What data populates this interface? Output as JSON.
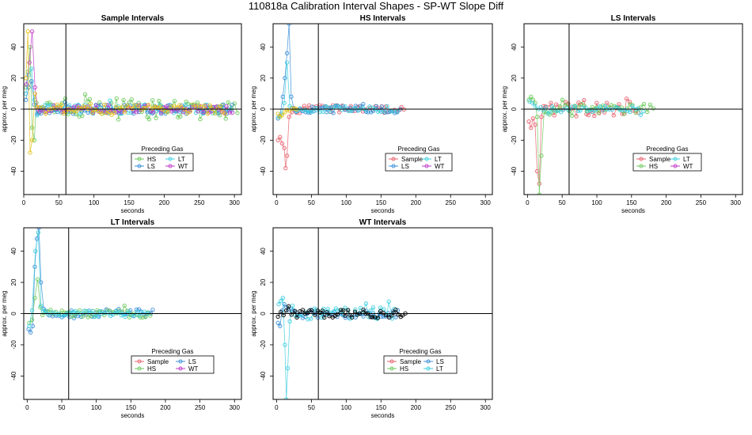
{
  "title": "110818a   Calibration Interval Shapes - SP-WT Slope Diff",
  "colors": {
    "Sample": "#e8616d",
    "HS": "#6cc95c",
    "LS": "#3a8fd8",
    "LT": "#3fcfdf",
    "WT": "#c23bc8",
    "Own": "#000000",
    "Yellow": "#e5c21a"
  },
  "chart_data": [
    {
      "type": "scatter",
      "title": "Sample Intervals",
      "xlabel": "seconds",
      "ylabel": "approx. per meg",
      "xlim": [
        0,
        310
      ],
      "ylim": [
        -55,
        55
      ],
      "xticks": [
        0,
        50,
        100,
        150,
        200,
        250,
        300
      ],
      "yticks": [
        -40,
        -20,
        0,
        20,
        40
      ],
      "vline": 60,
      "hline": 0,
      "legend": {
        "title": "Preceding Gas",
        "entries": [
          "HS",
          "LT",
          "LS",
          "WT"
        ]
      },
      "series": [
        {
          "name": "HS",
          "color_key": "HS",
          "x_max": 305,
          "early": [
            [
              3,
              14
            ],
            [
              6,
              24
            ],
            [
              9,
              40
            ],
            [
              12,
              -12
            ],
            [
              15,
              -20
            ],
            [
              18,
              4
            ],
            [
              22,
              -2
            ]
          ],
          "amp": 7
        },
        {
          "name": "LT",
          "color_key": "LT",
          "x_max": 300,
          "early": [
            [
              3,
              10
            ],
            [
              7,
              22
            ],
            [
              11,
              26
            ],
            [
              15,
              6
            ],
            [
              19,
              -4
            ]
          ],
          "amp": 3
        },
        {
          "name": "LS",
          "color_key": "LS",
          "x_max": 300,
          "early": [
            [
              3,
              6
            ],
            [
              7,
              14
            ],
            [
              11,
              18
            ],
            [
              15,
              3
            ],
            [
              19,
              -3
            ]
          ],
          "amp": 3
        },
        {
          "name": "WT",
          "color_key": "WT",
          "x_max": 300,
          "early": [
            [
              4,
              16
            ],
            [
              8,
              30
            ],
            [
              12,
              50
            ],
            [
              16,
              14
            ],
            [
              20,
              0
            ]
          ],
          "amp": 2.5
        },
        {
          "name": "",
          "color_key": "Yellow",
          "x_max": 290,
          "early": [
            [
              3,
              20
            ],
            [
              6,
              50
            ],
            [
              9,
              -28
            ],
            [
              12,
              -20
            ],
            [
              16,
              10
            ]
          ],
          "amp": 3
        }
      ]
    },
    {
      "type": "scatter",
      "title": "HS Intervals",
      "xlabel": "seconds",
      "ylabel": "approx. per meg",
      "xlim": [
        -5,
        310
      ],
      "ylim": [
        -55,
        55
      ],
      "xticks": [
        0,
        50,
        100,
        150,
        200,
        250,
        300
      ],
      "yticks": [
        -40,
        -20,
        0,
        20,
        40
      ],
      "vline": 60,
      "hline": 0,
      "legend": {
        "title": "Preceding Gas",
        "entries": [
          "Sample",
          "LT",
          "LS",
          "WT"
        ]
      },
      "series": [
        {
          "name": "Sample",
          "color_key": "Sample",
          "x_max": 185,
          "early": [
            [
              2,
              -20
            ],
            [
              5,
              -18
            ],
            [
              8,
              -22
            ],
            [
              11,
              -25
            ],
            [
              13,
              -38
            ],
            [
              15,
              -30
            ],
            [
              18,
              -5
            ],
            [
              22,
              -2
            ]
          ],
          "amp": 2.5
        },
        {
          "name": "LS",
          "color_key": "LS",
          "x_max": 180,
          "early": [
            [
              2,
              -6
            ],
            [
              5,
              -4
            ],
            [
              9,
              8
            ],
            [
              12,
              20
            ],
            [
              15,
              36
            ],
            [
              18,
              55
            ],
            [
              21,
              8
            ],
            [
              25,
              0
            ]
          ],
          "amp": 2.5
        },
        {
          "name": "LT",
          "color_key": "LT",
          "x_max": 175,
          "early": [
            [
              3,
              -5
            ],
            [
              7,
              -3
            ],
            [
              11,
              4
            ],
            [
              15,
              30
            ],
            [
              19,
              2
            ]
          ],
          "amp": 2
        },
        {
          "name": "",
          "color_key": "Yellow",
          "x_max": 30,
          "early": [
            [
              2,
              -3
            ],
            [
              5,
              -5
            ],
            [
              8,
              -4
            ],
            [
              12,
              -2
            ]
          ],
          "amp": 1
        }
      ]
    },
    {
      "type": "scatter",
      "title": "LS Intervals",
      "xlabel": "seconds",
      "ylabel": "approx. per meg",
      "xlim": [
        -5,
        310
      ],
      "ylim": [
        -55,
        55
      ],
      "xticks": [
        0,
        50,
        100,
        150,
        200,
        250,
        300
      ],
      "yticks": [
        -40,
        -20,
        0,
        20,
        40
      ],
      "vline": 60,
      "hline": 0,
      "legend": {
        "title": "Preceding Gas",
        "entries": [
          "Sample",
          "LT",
          "HS",
          "WT"
        ]
      },
      "series": [
        {
          "name": "Sample",
          "color_key": "Sample",
          "x_max": 160,
          "early": [
            [
              2,
              -8
            ],
            [
              5,
              -12
            ],
            [
              8,
              -6
            ],
            [
              11,
              -10
            ],
            [
              14,
              -40
            ],
            [
              17,
              -48
            ],
            [
              20,
              -5
            ]
          ],
          "amp": 5
        },
        {
          "name": "HS",
          "color_key": "HS",
          "x_max": 185,
          "early": [
            [
              2,
              6
            ],
            [
              5,
              8
            ],
            [
              8,
              6
            ],
            [
              11,
              4
            ],
            [
              14,
              -5
            ],
            [
              17,
              -55
            ],
            [
              20,
              -30
            ],
            [
              24,
              -2
            ]
          ],
          "amp": 3.5
        },
        {
          "name": "LT",
          "color_key": "LT",
          "x_max": 170,
          "early": [
            [
              3,
              5
            ],
            [
              7,
              4
            ],
            [
              11,
              2
            ],
            [
              16,
              0
            ]
          ],
          "amp": 2
        }
      ]
    },
    {
      "type": "scatter",
      "title": "LT Intervals",
      "xlabel": "seconds",
      "ylabel": "approx. per meg",
      "xlim": [
        -5,
        310
      ],
      "ylim": [
        -55,
        55
      ],
      "xticks": [
        0,
        50,
        100,
        150,
        200,
        250,
        300
      ],
      "yticks": [
        -40,
        -20,
        0,
        20,
        40
      ],
      "vline": 60,
      "hline": 0,
      "legend": {
        "title": "Preceding Gas",
        "entries": [
          "Sample",
          "LS",
          "HS",
          "WT"
        ]
      },
      "series": [
        {
          "name": "LS",
          "color_key": "LS",
          "x_max": 185,
          "early": [
            [
              2,
              -10
            ],
            [
              5,
              -12
            ],
            [
              8,
              -8
            ],
            [
              11,
              30
            ],
            [
              14,
              48
            ],
            [
              17,
              55
            ],
            [
              20,
              20
            ],
            [
              24,
              3
            ]
          ],
          "amp": 3
        },
        {
          "name": "HS",
          "color_key": "HS",
          "x_max": 180,
          "early": [
            [
              3,
              -6
            ],
            [
              7,
              -4
            ],
            [
              11,
              10
            ],
            [
              15,
              22
            ],
            [
              19,
              4
            ]
          ],
          "amp": 2.5
        },
        {
          "name": "LT",
          "color_key": "LT",
          "x_max": 175,
          "early": [
            [
              3,
              -8
            ],
            [
              7,
              2
            ],
            [
              12,
              40
            ],
            [
              16,
              52
            ],
            [
              20,
              5
            ]
          ],
          "amp": 2
        }
      ]
    },
    {
      "type": "scatter",
      "title": "WT Intervals",
      "xlabel": "seconds",
      "ylabel": "approx. per meg",
      "xlim": [
        -5,
        310
      ],
      "ylim": [
        -55,
        55
      ],
      "xticks": [
        0,
        50,
        100,
        150,
        200,
        250,
        300
      ],
      "yticks": [
        -40,
        -20,
        0,
        20,
        40
      ],
      "vline": 60,
      "hline": 0,
      "legend": {
        "title": "Preceding Gas",
        "entries": [
          "Sample",
          "LS",
          "HS",
          "LT"
        ]
      },
      "series": [
        {
          "name": "LS",
          "color_key": "LS",
          "x_max": 175,
          "early": [
            [
              2,
              -6
            ],
            [
              5,
              -8
            ],
            [
              8,
              2
            ],
            [
              11,
              6
            ],
            [
              14,
              4
            ]
          ],
          "amp": 3
        },
        {
          "name": "LT",
          "color_key": "LT",
          "x_max": 170,
          "early": [
            [
              3,
              6
            ],
            [
              6,
              8
            ],
            [
              9,
              10
            ],
            [
              12,
              -20
            ],
            [
              14,
              -55
            ],
            [
              16,
              -35
            ],
            [
              19,
              -5
            ],
            [
              23,
              5
            ]
          ],
          "amp": 4
        },
        {
          "name": "",
          "color_key": "Own",
          "x_max": 185,
          "early": [
            [
              2,
              -2
            ],
            [
              6,
              1
            ],
            [
              10,
              -1
            ],
            [
              14,
              2
            ]
          ],
          "amp": 2.5
        }
      ]
    }
  ]
}
